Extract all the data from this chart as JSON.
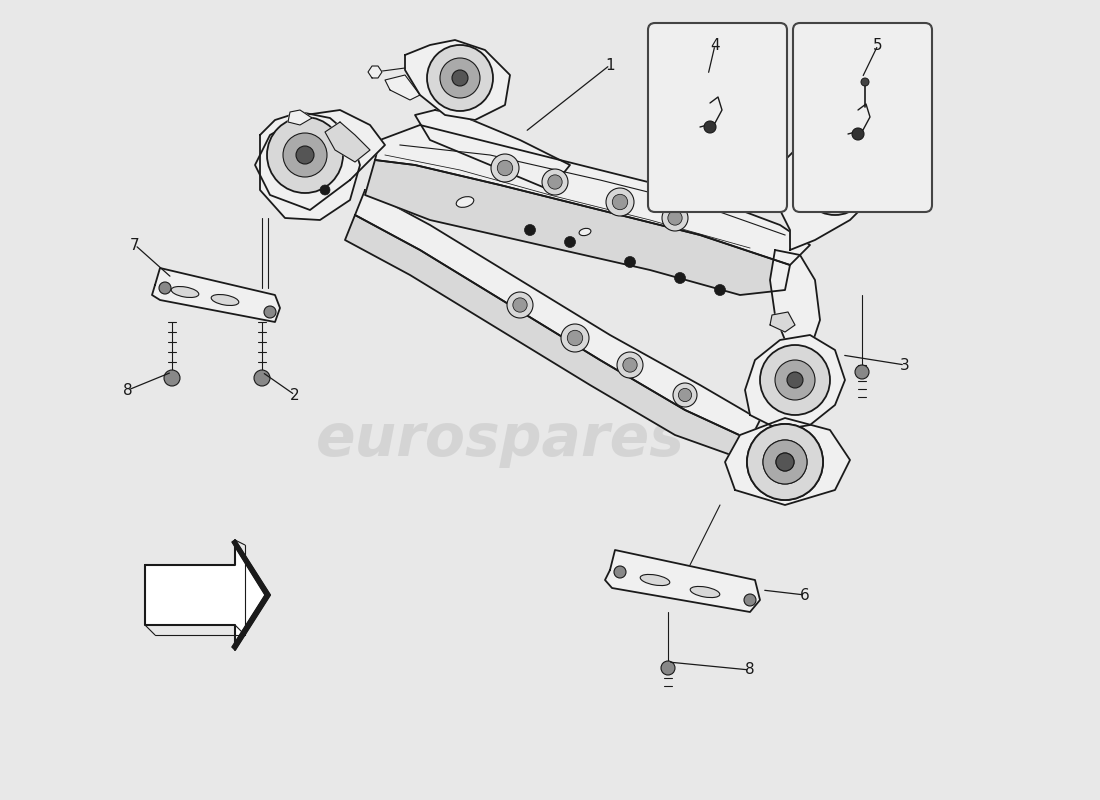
{
  "background_color": "#e8e8e8",
  "line_color": "#1a1a1a",
  "fill_light": "#f0f0f0",
  "fill_white": "#ffffff",
  "fill_medium": "#d8d8d8",
  "watermark_text": "eurospares",
  "watermark_color": "#c8c8c8",
  "watermark_alpha": 0.6,
  "watermark_fontsize": 42,
  "label_fontsize": 11,
  "box_edge_color": "#333333",
  "box_fill": "#efefef",
  "lw_main": 1.3,
  "lw_thin": 0.8
}
